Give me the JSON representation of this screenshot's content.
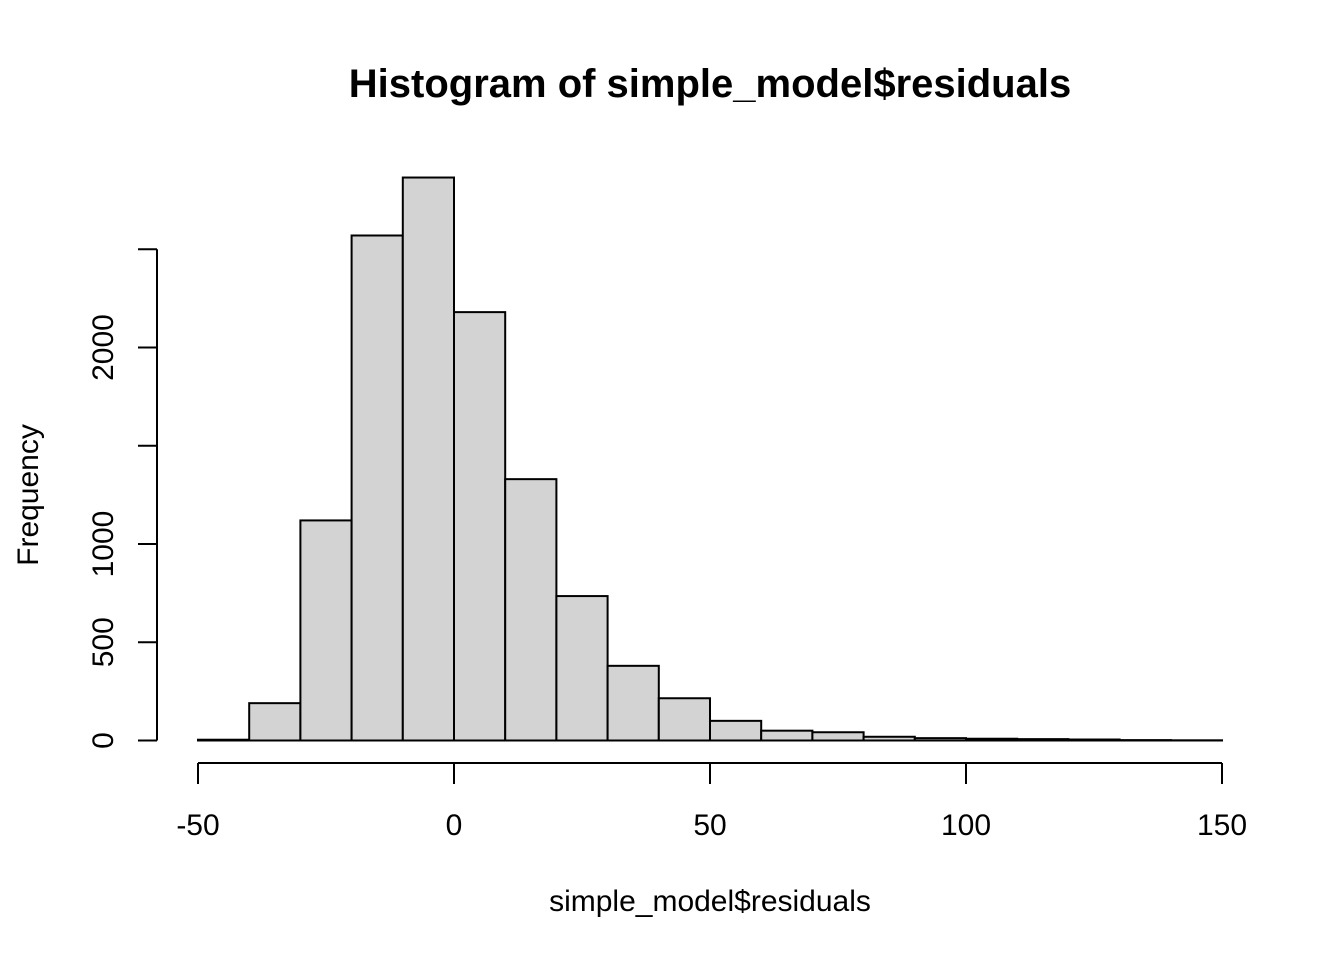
{
  "page": {
    "background": "#ffffff"
  },
  "chart_data": {
    "type": "histogram",
    "title": "Histogram of simple_model$residuals",
    "xlabel": "simple_model$residuals",
    "ylabel": "Frequency",
    "xlim": [
      -50,
      150
    ],
    "ylim": [
      0,
      2500
    ],
    "bin_width": 10,
    "breaks": [
      -50,
      -40,
      -30,
      -20,
      -10,
      0,
      10,
      20,
      30,
      40,
      50,
      60,
      70,
      80,
      90,
      100,
      110,
      120,
      130,
      140,
      150
    ],
    "counts": [
      4,
      190,
      1120,
      2570,
      2865,
      2180,
      1330,
      735,
      380,
      215,
      100,
      50,
      42,
      19,
      12,
      9,
      7,
      5,
      2,
      1
    ],
    "x_ticks": [
      {
        "value": -50,
        "label": "-50"
      },
      {
        "value": 0,
        "label": "0"
      },
      {
        "value": 50,
        "label": "50"
      },
      {
        "value": 100,
        "label": "100"
      },
      {
        "value": 150,
        "label": "150"
      }
    ],
    "y_ticks": [
      {
        "value": 0,
        "label": "0"
      },
      {
        "value": 500,
        "label": "500"
      },
      {
        "value": 1000,
        "label": "1000"
      },
      {
        "value": 1500,
        "label": ""
      },
      {
        "value": 2000,
        "label": "2000"
      },
      {
        "value": 2500,
        "label": ""
      }
    ],
    "grid": false,
    "legend": null,
    "bar_fill": "#d3d3d3",
    "bar_stroke": "#000000",
    "axis_color": "#000000",
    "text_color": "#000000"
  }
}
